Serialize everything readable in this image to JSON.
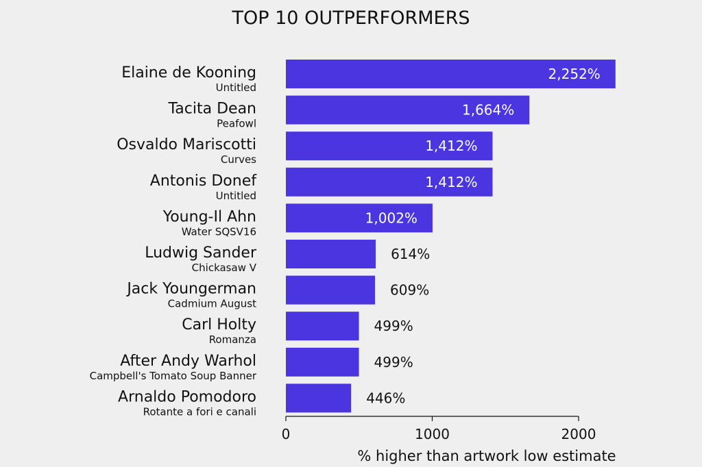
{
  "chart_data": {
    "type": "bar",
    "orientation": "horizontal",
    "title": "TOP 10 OUTPERFORMERS",
    "xlabel": "% higher than artwork low estimate",
    "xlim": [
      0,
      2000
    ],
    "xticks": [
      0,
      1000,
      2000
    ],
    "grid": false,
    "bar_color": "#4a35e0",
    "categories": [
      {
        "artist": "Elaine de Kooning",
        "work": "Untitled"
      },
      {
        "artist": "Tacita Dean",
        "work": "Peafowl"
      },
      {
        "artist": "Osvaldo Mariscotti",
        "work": "Curves"
      },
      {
        "artist": "Antonis Donef",
        "work": "Untitled"
      },
      {
        "artist": "Young-Il Ahn",
        "work": "Water SQSV16"
      },
      {
        "artist": "Ludwig Sander",
        "work": "Chickasaw V"
      },
      {
        "artist": "Jack Youngerman",
        "work": "Cadmium August"
      },
      {
        "artist": "Carl Holty",
        "work": "Romanza"
      },
      {
        "artist": "After Andy Warhol",
        "work": "Campbell's Tomato Soup Banner"
      },
      {
        "artist": "Arnaldo Pomodoro",
        "work": "Rotante a fori e canali"
      }
    ],
    "values": [
      2252,
      1664,
      1412,
      1412,
      1002,
      614,
      609,
      499,
      499,
      446
    ],
    "value_labels": [
      "2,252%",
      "1,664%",
      "1,412%",
      "1,412%",
      "1,002%",
      "614%",
      "609%",
      "499%",
      "499%",
      "446%"
    ]
  }
}
